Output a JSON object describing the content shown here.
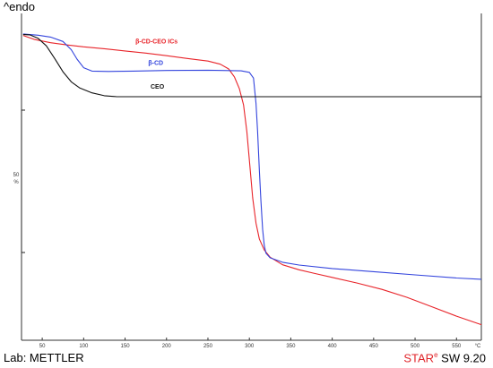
{
  "header": {
    "title": "^endo"
  },
  "footer": {
    "lab": "Lab: METTLER",
    "brand_a": "STAR",
    "brand_sup": "e",
    "brand_b": " SW 9.20"
  },
  "chart_data": {
    "type": "line",
    "title": "",
    "xlabel": "",
    "ylabel": "",
    "x_unit": "°C",
    "xlim": [
      25,
      580
    ],
    "ylim": [
      0,
      100
    ],
    "x_ticks": [
      50,
      100,
      150,
      200,
      250,
      300,
      350,
      400,
      450,
      500,
      550
    ],
    "scale_bar": {
      "value_label": "50",
      "unit_label": "%"
    },
    "grid": false,
    "legend": "inline labels near curves",
    "series": [
      {
        "name": "β-CD-CEO ICs",
        "color": "#e8242a",
        "x": [
          27,
          40,
          60,
          80,
          100,
          125,
          150,
          175,
          200,
          225,
          250,
          265,
          275,
          282,
          288,
          293,
          297,
          300,
          304,
          308,
          312,
          318,
          325,
          340,
          360,
          380,
          400,
          430,
          460,
          490,
          520,
          550,
          580
        ],
        "y": [
          95.5,
          94.3,
          93.2,
          92.5,
          91.9,
          91.3,
          90.6,
          89.9,
          89.1,
          88.2,
          87.4,
          86.4,
          84.9,
          82.3,
          78.6,
          73.5,
          65.0,
          56.0,
          44.0,
          36.0,
          31.0,
          27.5,
          25.2,
          22.8,
          21.2,
          20.0,
          18.8,
          17.0,
          15.0,
          12.5,
          9.5,
          6.5,
          3.8
        ]
      },
      {
        "name": "β-CD",
        "color": "#3344dd",
        "x": [
          27,
          45,
          60,
          75,
          85,
          92,
          100,
          110,
          130,
          160,
          200,
          250,
          290,
          300,
          305,
          308,
          310,
          312,
          314,
          316,
          318,
          320,
          325,
          340,
          360,
          400,
          450,
          500,
          550,
          580
        ],
        "y": [
          96.0,
          95.6,
          95.0,
          93.6,
          91.0,
          88.0,
          85.3,
          84.2,
          84.1,
          84.2,
          84.4,
          84.5,
          84.3,
          83.8,
          82.0,
          74.0,
          65.0,
          53.0,
          43.0,
          34.0,
          29.0,
          26.5,
          25.0,
          23.6,
          22.7,
          21.6,
          20.6,
          19.6,
          18.6,
          18.2
        ]
      },
      {
        "name": "CEO",
        "color": "#111111",
        "x": [
          27,
          35,
          45,
          55,
          65,
          75,
          85,
          95,
          110,
          125,
          140,
          160,
          200,
          300,
          400,
          500,
          580
        ],
        "y": [
          95.8,
          95.7,
          94.6,
          92.2,
          88.2,
          84.0,
          80.8,
          78.9,
          77.3,
          76.4,
          76.1,
          76.1,
          76.1,
          76.1,
          76.1,
          76.1,
          76.1
        ]
      }
    ],
    "annotations": [
      {
        "text": "β-CD-CEO ICs",
        "x": 188,
        "y": 93.0,
        "color": "#e8242a"
      },
      {
        "text": "β-CD",
        "x": 187,
        "y": 86.2,
        "color": "#3344dd"
      },
      {
        "text": "CEO",
        "x": 189,
        "y": 78.7,
        "color": "#111111"
      }
    ]
  }
}
